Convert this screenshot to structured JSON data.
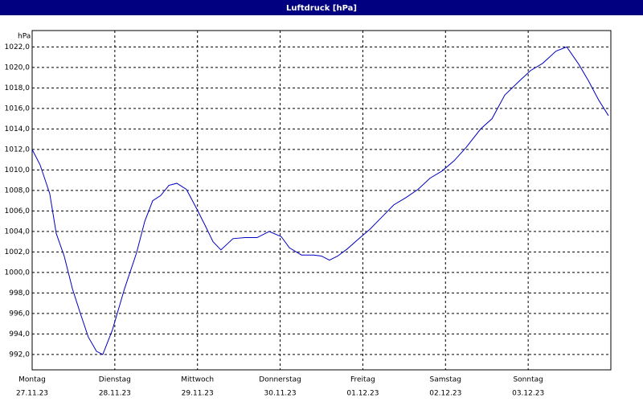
{
  "chart_data": {
    "type": "line",
    "title": "Luftdruck [hPa]",
    "y_unit": "hPa",
    "x": [
      0,
      2.3,
      5.1,
      7,
      9.3,
      11.7,
      14,
      16.3,
      18.7,
      20.5,
      23.3,
      26.8,
      30.3,
      32.7,
      35,
      37.3,
      39.7,
      42,
      44.8,
      47.8,
      50.2,
      52.5,
      54.8,
      58.3,
      61.8,
      65.3,
      68.8,
      72.3,
      74.7,
      78.2,
      81.7,
      84,
      86.3,
      88.7,
      91.5,
      94.5,
      98,
      101.5,
      105,
      108.5,
      112,
      115.5,
      119,
      122.5,
      126,
      130.2,
      133.5,
      137.2,
      141.2,
      144.7,
      148.2,
      152.1,
      155.2,
      158.7,
      161.5,
      164.5,
      167.3
    ],
    "series": [
      {
        "name": "Luftdruck",
        "color": "#0000c0",
        "values": [
          1012.0,
          1010.5,
          1007.7,
          1003.8,
          1001.6,
          998.4,
          996.0,
          993.7,
          992.3,
          992.0,
          994.4,
          998.4,
          1001.9,
          1005.0,
          1007.0,
          1007.5,
          1008.5,
          1008.7,
          1008.1,
          1006.2,
          1004.6,
          1003.0,
          1002.2,
          1003.3,
          1003.4,
          1003.4,
          1004.0,
          1003.5,
          1002.4,
          1001.7,
          1001.7,
          1001.6,
          1001.2,
          1001.6,
          1002.3,
          1003.2,
          1004.2,
          1005.4,
          1006.6,
          1007.3,
          1008.1,
          1009.2,
          1009.9,
          1010.9,
          1012.2,
          1014.0,
          1015.0,
          1017.3,
          1018.6,
          1019.7,
          1020.4,
          1021.6,
          1022.0,
          1020.3,
          1018.7,
          1016.8,
          1015.3
        ]
      }
    ],
    "xlim": [
      0,
      168
    ],
    "xticks": [
      {
        "value": 0,
        "label": "Montag"
      },
      {
        "value": 24,
        "label": "Dienstag"
      },
      {
        "value": 48,
        "label": "Mittwoch"
      },
      {
        "value": 72,
        "label": "Donnerstag"
      },
      {
        "value": 96,
        "label": "Freitag"
      },
      {
        "value": 120,
        "label": "Samstag"
      },
      {
        "value": 144,
        "label": "Sonntag"
      }
    ],
    "xtick_dates": [
      "27.11.23",
      "28.11.23",
      "29.11.23",
      "30.11.23",
      "01.12.23",
      "02.12.23",
      "03.12.23"
    ],
    "ylim": [
      990.5,
      1023.6
    ],
    "yticks": [
      {
        "value": 992,
        "label": "992,0"
      },
      {
        "value": 994,
        "label": "994,0"
      },
      {
        "value": 996,
        "label": "996,0"
      },
      {
        "value": 998,
        "label": "998,0"
      },
      {
        "value": 1000,
        "label": "1000,0"
      },
      {
        "value": 1002,
        "label": "1002,0"
      },
      {
        "value": 1004,
        "label": "1004,0"
      },
      {
        "value": 1006,
        "label": "1006,0"
      },
      {
        "value": 1008,
        "label": "1008,0"
      },
      {
        "value": 1010,
        "label": "1010,0"
      },
      {
        "value": 1012,
        "label": "1012,0"
      },
      {
        "value": 1014,
        "label": "1014,0"
      },
      {
        "value": 1016,
        "label": "1016,0"
      },
      {
        "value": 1018,
        "label": "1018,0"
      },
      {
        "value": 1020,
        "label": "1020,0"
      },
      {
        "value": 1022,
        "label": "1022,0"
      }
    ],
    "grid": true
  }
}
